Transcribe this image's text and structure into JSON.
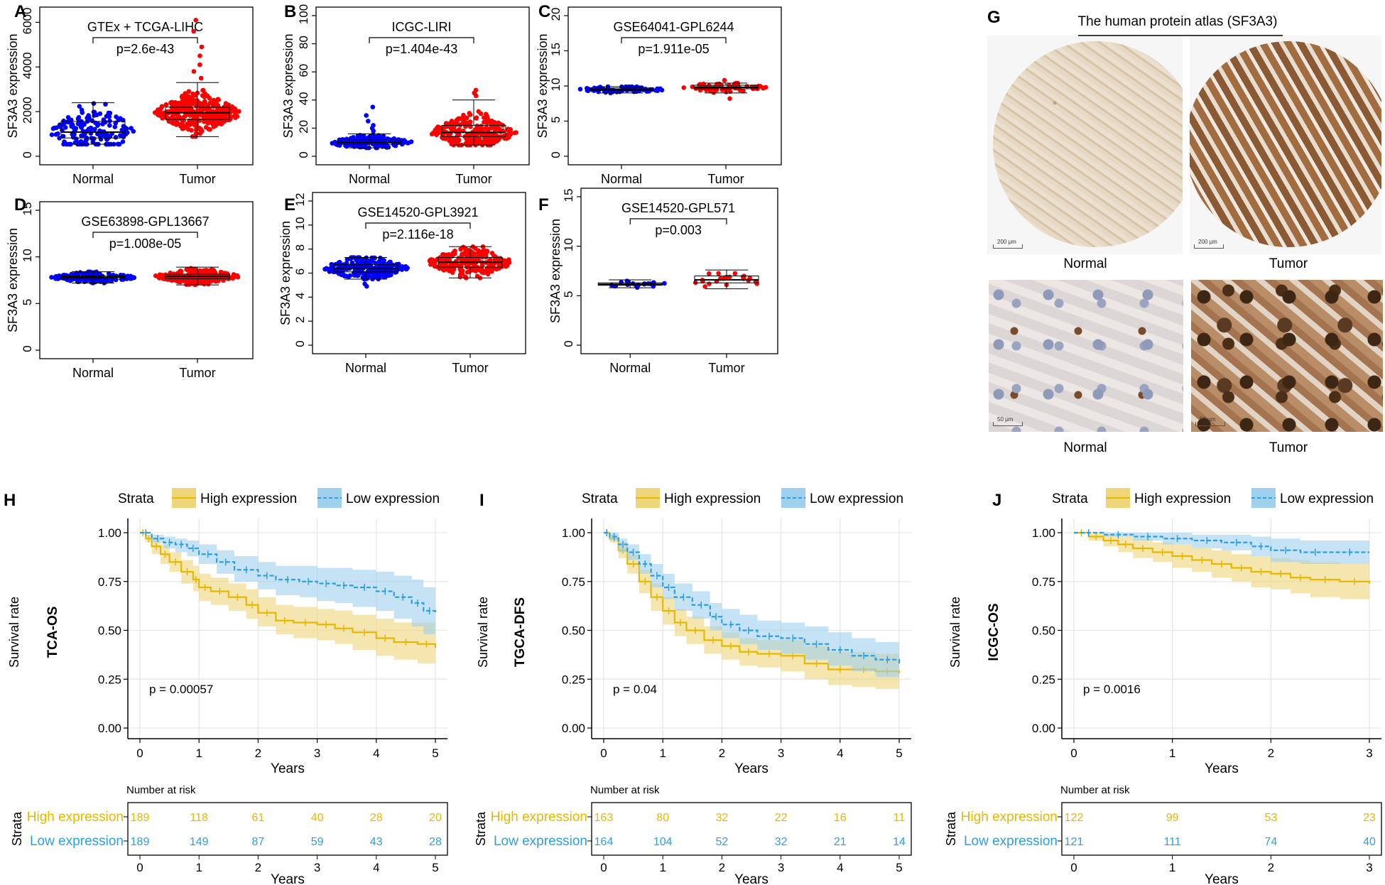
{
  "chart_data": [
    {
      "id": "A",
      "type": "boxplot-beeswarm",
      "panel_label": "A",
      "title": "GTEx + TCGA-LIHC",
      "pvalue": "p=2.6e-43",
      "ylabel": "SF3A3 expression",
      "ylim": [
        0,
        6300
      ],
      "yticks": [
        0,
        2000,
        4000,
        6000
      ],
      "ytick_labels": [
        "0",
        "2000",
        "4000",
        "6000"
      ],
      "categories": [
        "Normal",
        "Tumor"
      ],
      "groups": [
        {
          "name": "Normal",
          "color": "#0000ff",
          "n": 160,
          "median": 1080,
          "q1": 820,
          "q3": 1560,
          "whisker_low": 540,
          "whisker_high": 2400
        },
        {
          "name": "Tumor",
          "color": "#ff0000",
          "n": 370,
          "median": 1950,
          "q1": 1650,
          "q3": 2200,
          "whisker_low": 880,
          "whisker_high": 3300,
          "outliers": [
            3500,
            3800,
            4100,
            4500,
            4900,
            5600,
            6100
          ]
        }
      ]
    },
    {
      "id": "B",
      "type": "boxplot-beeswarm",
      "panel_label": "B",
      "title": "ICGC-LIRI",
      "pvalue": "p=1.404e-43",
      "ylabel": "SF3A3 expression",
      "ylim": [
        0,
        100
      ],
      "yticks": [
        0,
        20,
        40,
        60,
        80,
        100
      ],
      "ytick_labels": [
        "0",
        "20",
        "40",
        "60",
        "80",
        "100"
      ],
      "categories": [
        "Normal",
        "Tumor"
      ],
      "groups": [
        {
          "name": "Normal",
          "color": "#0000ff",
          "n": 200,
          "median": 10,
          "q1": 8.5,
          "q3": 11.5,
          "whisker_low": 6,
          "whisker_high": 16,
          "outliers": [
            18,
            20,
            22,
            25,
            29,
            35
          ]
        },
        {
          "name": "Tumor",
          "color": "#ff0000",
          "n": 240,
          "median": 17,
          "q1": 14,
          "q3": 22,
          "whisker_low": 8,
          "whisker_high": 40,
          "outliers": [
            43,
            45,
            47
          ]
        }
      ]
    },
    {
      "id": "C",
      "type": "boxplot-beeswarm",
      "panel_label": "C",
      "title": "GSE64041-GPL6244",
      "pvalue": "p=1.911e-05",
      "ylabel": "SF3A3 expression",
      "ylim": [
        0,
        20
      ],
      "yticks": [
        0,
        5,
        10,
        15,
        20
      ],
      "ytick_labels": [
        "0",
        "5",
        "10",
        "15",
        "20"
      ],
      "categories": [
        "Normal",
        "Tumor"
      ],
      "groups": [
        {
          "name": "Normal",
          "color": "#0000ff",
          "n": 65,
          "median": 9.5,
          "q1": 9.35,
          "q3": 9.7,
          "whisker_low": 9.0,
          "whisker_high": 9.9
        },
        {
          "name": "Tumor",
          "color": "#ff0000",
          "n": 60,
          "median": 9.8,
          "q1": 9.6,
          "q3": 10.1,
          "whisker_low": 9.0,
          "whisker_high": 10.4,
          "outliers": [
            8.2,
            10.8
          ]
        }
      ]
    },
    {
      "id": "D",
      "type": "boxplot-beeswarm",
      "panel_label": "D",
      "title": "GSE63898-GPL13667",
      "pvalue": "p=1.008e-05",
      "ylabel": "SF3A3 expression",
      "ylim": [
        0,
        15
      ],
      "yticks": [
        0,
        5,
        10,
        15
      ],
      "ytick_labels": [
        "0",
        "5",
        "10",
        "15"
      ],
      "categories": [
        "Normal",
        "Tumor"
      ],
      "groups": [
        {
          "name": "Normal",
          "color": "#0000ff",
          "n": 168,
          "median": 7.8,
          "q1": 7.6,
          "q3": 7.95,
          "whisker_low": 7.2,
          "whisker_high": 8.4
        },
        {
          "name": "Tumor",
          "color": "#ff0000",
          "n": 228,
          "median": 7.9,
          "q1": 7.65,
          "q3": 8.15,
          "whisker_low": 7.0,
          "whisker_high": 8.9
        }
      ]
    },
    {
      "id": "E",
      "type": "boxplot-beeswarm",
      "panel_label": "E",
      "title": "GSE14520-GPL3921",
      "pvalue": "p=2.116e-18",
      "ylabel": "SF3A3 expression",
      "ylim": [
        0,
        12
      ],
      "yticks": [
        0,
        2,
        4,
        6,
        8,
        10,
        12
      ],
      "ytick_labels": [
        "0",
        "2",
        "4",
        "6",
        "8",
        "10",
        "12"
      ],
      "categories": [
        "Normal",
        "Tumor"
      ],
      "groups": [
        {
          "name": "Normal",
          "color": "#0000ff",
          "n": 220,
          "median": 6.4,
          "q1": 6.1,
          "q3": 6.7,
          "whisker_low": 5.5,
          "whisker_high": 7.3,
          "outliers": [
            4.9,
            5.1
          ]
        },
        {
          "name": "Tumor",
          "color": "#ff0000",
          "n": 225,
          "median": 6.9,
          "q1": 6.5,
          "q3": 7.3,
          "whisker_low": 5.6,
          "whisker_high": 8.2
        }
      ]
    },
    {
      "id": "F",
      "type": "boxplot-beeswarm",
      "panel_label": "F",
      "title": "GSE14520-GPL571",
      "pvalue": "p=0.003",
      "ylabel": "SF3A3 expression",
      "ylim": [
        0,
        15
      ],
      "yticks": [
        0,
        5,
        10,
        15
      ],
      "ytick_labels": [
        "0",
        "5",
        "10",
        "15"
      ],
      "categories": [
        "Normal",
        "Tumor"
      ],
      "groups": [
        {
          "name": "Normal",
          "color": "#0000ff",
          "n": 19,
          "median": 6.15,
          "q1": 6.05,
          "q3": 6.3,
          "whisker_low": 5.8,
          "whisker_high": 6.6
        },
        {
          "name": "Tumor",
          "color": "#ff0000",
          "n": 22,
          "median": 6.6,
          "q1": 6.3,
          "q3": 7.0,
          "whisker_low": 5.7,
          "whisker_high": 7.6
        }
      ]
    },
    {
      "id": "H",
      "type": "survival",
      "panel_label": "H",
      "side_label": "TCA-OS",
      "ylabel": "Survival rate",
      "xlabel": "Years",
      "pvalue": "p = 0.00057",
      "xlim": [
        0,
        5
      ],
      "ylim": [
        0,
        1
      ],
      "xticks": [
        0,
        1,
        2,
        3,
        4,
        5
      ],
      "yticks": [
        0,
        0.25,
        0.5,
        0.75,
        1
      ],
      "ytick_labels": [
        "0.00",
        "0.25",
        "0.50",
        "0.75",
        "1.00"
      ],
      "series": [
        {
          "name": "High expression",
          "color": "#e7b800",
          "fill": "#efd67a",
          "x": [
            0,
            0.1,
            0.2,
            0.35,
            0.5,
            0.7,
            0.9,
            1.0,
            1.2,
            1.5,
            1.8,
            2.0,
            2.3,
            2.6,
            3.0,
            3.3,
            3.6,
            4.0,
            4.3,
            4.7,
            5.0
          ],
          "y": [
            1.0,
            0.97,
            0.93,
            0.89,
            0.85,
            0.8,
            0.76,
            0.72,
            0.7,
            0.67,
            0.63,
            0.59,
            0.55,
            0.54,
            0.53,
            0.51,
            0.49,
            0.46,
            0.44,
            0.43,
            0.41
          ],
          "lower": [
            1.0,
            0.95,
            0.89,
            0.84,
            0.8,
            0.74,
            0.7,
            0.65,
            0.63,
            0.6,
            0.56,
            0.52,
            0.48,
            0.46,
            0.45,
            0.43,
            0.4,
            0.37,
            0.35,
            0.33,
            0.31
          ],
          "upper": [
            1.0,
            0.99,
            0.97,
            0.94,
            0.9,
            0.86,
            0.83,
            0.79,
            0.77,
            0.74,
            0.71,
            0.67,
            0.63,
            0.62,
            0.61,
            0.6,
            0.58,
            0.56,
            0.54,
            0.54,
            0.53
          ]
        },
        {
          "name": "Low expression",
          "color": "#2e9fdf",
          "fill": "#9fd0ee",
          "dashed": true,
          "x": [
            0,
            0.2,
            0.4,
            0.6,
            0.8,
            1.0,
            1.3,
            1.6,
            2.0,
            2.3,
            2.7,
            3.0,
            3.3,
            3.6,
            4.0,
            4.3,
            4.6,
            4.8,
            5.0
          ],
          "y": [
            1.0,
            0.97,
            0.95,
            0.94,
            0.92,
            0.89,
            0.85,
            0.81,
            0.78,
            0.76,
            0.75,
            0.74,
            0.73,
            0.72,
            0.7,
            0.67,
            0.64,
            0.6,
            0.59
          ],
          "lower": [
            1.0,
            0.95,
            0.92,
            0.9,
            0.88,
            0.84,
            0.79,
            0.75,
            0.71,
            0.68,
            0.67,
            0.65,
            0.64,
            0.62,
            0.6,
            0.56,
            0.52,
            0.48,
            0.47
          ],
          "upper": [
            1.0,
            0.99,
            0.98,
            0.97,
            0.96,
            0.94,
            0.91,
            0.88,
            0.85,
            0.83,
            0.83,
            0.82,
            0.82,
            0.81,
            0.8,
            0.78,
            0.76,
            0.72,
            0.71
          ]
        }
      ],
      "legend": {
        "title": "Strata",
        "entries": [
          "High expression",
          "Low expression"
        ]
      },
      "risk_table": {
        "title": "Number at risk",
        "strata_label": "Strata",
        "xlabel": "Years",
        "rows": [
          {
            "name": "High expression",
            "color": "#e7b800",
            "values": [
              189,
              118,
              61,
              40,
              28,
              20
            ]
          },
          {
            "name": "Low expression",
            "color": "#2e9fdf",
            "values": [
              189,
              149,
              87,
              59,
              43,
              28
            ]
          }
        ]
      }
    },
    {
      "id": "I",
      "type": "survival",
      "panel_label": "I",
      "side_label": "TGCA-DFS",
      "ylabel": "Survival rate",
      "xlabel": "Years",
      "pvalue": "p = 0.04",
      "xlim": [
        0,
        5
      ],
      "ylim": [
        0,
        1
      ],
      "xticks": [
        0,
        1,
        2,
        3,
        4,
        5
      ],
      "yticks": [
        0,
        0.25,
        0.5,
        0.75,
        1
      ],
      "ytick_labels": [
        "0.00",
        "0.25",
        "0.50",
        "0.75",
        "1.00"
      ],
      "series": [
        {
          "name": "High expression",
          "color": "#e7b800",
          "fill": "#efd67a",
          "x": [
            0,
            0.1,
            0.25,
            0.4,
            0.6,
            0.8,
            1.0,
            1.2,
            1.4,
            1.7,
            2.0,
            2.3,
            2.6,
            3.0,
            3.4,
            3.8,
            4.2,
            4.6,
            5.0
          ],
          "y": [
            1.0,
            0.97,
            0.91,
            0.84,
            0.75,
            0.67,
            0.6,
            0.54,
            0.5,
            0.45,
            0.42,
            0.39,
            0.38,
            0.37,
            0.33,
            0.3,
            0.3,
            0.29,
            0.28
          ],
          "lower": [
            1.0,
            0.95,
            0.87,
            0.79,
            0.69,
            0.6,
            0.53,
            0.47,
            0.43,
            0.38,
            0.35,
            0.32,
            0.31,
            0.29,
            0.25,
            0.22,
            0.21,
            0.2,
            0.19
          ],
          "upper": [
            1.0,
            0.99,
            0.95,
            0.89,
            0.81,
            0.74,
            0.67,
            0.61,
            0.57,
            0.52,
            0.49,
            0.46,
            0.45,
            0.45,
            0.42,
            0.39,
            0.39,
            0.38,
            0.38
          ]
        },
        {
          "name": "Low expression",
          "color": "#2e9fdf",
          "fill": "#9fd0ee",
          "dashed": true,
          "x": [
            0,
            0.1,
            0.25,
            0.4,
            0.6,
            0.8,
            1.0,
            1.2,
            1.5,
            1.8,
            2.0,
            2.3,
            2.6,
            3.0,
            3.4,
            3.8,
            4.2,
            4.6,
            5.0
          ],
          "y": [
            1.0,
            0.98,
            0.94,
            0.9,
            0.84,
            0.78,
            0.72,
            0.67,
            0.63,
            0.57,
            0.53,
            0.5,
            0.47,
            0.46,
            0.43,
            0.4,
            0.37,
            0.35,
            0.33
          ],
          "lower": [
            1.0,
            0.96,
            0.9,
            0.86,
            0.79,
            0.72,
            0.66,
            0.6,
            0.56,
            0.5,
            0.46,
            0.43,
            0.4,
            0.38,
            0.35,
            0.32,
            0.29,
            0.26,
            0.24
          ],
          "upper": [
            1.0,
            1.0,
            0.97,
            0.94,
            0.89,
            0.84,
            0.79,
            0.74,
            0.7,
            0.64,
            0.61,
            0.58,
            0.55,
            0.54,
            0.52,
            0.49,
            0.46,
            0.44,
            0.43
          ]
        }
      ],
      "legend": {
        "title": "Strata",
        "entries": [
          "High expression",
          "Low expression"
        ]
      },
      "risk_table": {
        "title": "Number at risk",
        "strata_label": "Strata",
        "xlabel": "Years",
        "rows": [
          {
            "name": "High expression",
            "color": "#e7b800",
            "values": [
              163,
              80,
              32,
              22,
              16,
              11
            ]
          },
          {
            "name": "Low expression",
            "color": "#2e9fdf",
            "values": [
              164,
              104,
              52,
              32,
              21,
              14
            ]
          }
        ]
      }
    },
    {
      "id": "J",
      "type": "survival",
      "panel_label": "J",
      "side_label": "ICGC-OS",
      "ylabel": "Survival rate",
      "xlabel": "Years",
      "pvalue": "p = 0.0016",
      "xlim": [
        0,
        3
      ],
      "ylim": [
        0,
        1
      ],
      "xticks": [
        0,
        1,
        2,
        3
      ],
      "yticks": [
        0,
        0.25,
        0.5,
        0.75,
        1
      ],
      "ytick_labels": [
        "0.00",
        "0.25",
        "0.50",
        "0.75",
        "1.00"
      ],
      "series": [
        {
          "name": "High expression",
          "color": "#e7b800",
          "fill": "#efd67a",
          "x": [
            0,
            0.15,
            0.3,
            0.45,
            0.6,
            0.8,
            1.0,
            1.2,
            1.4,
            1.6,
            1.8,
            2.0,
            2.2,
            2.4,
            2.7,
            3.0
          ],
          "y": [
            1.0,
            0.98,
            0.96,
            0.94,
            0.92,
            0.9,
            0.88,
            0.86,
            0.84,
            0.82,
            0.8,
            0.79,
            0.77,
            0.76,
            0.75,
            0.74
          ],
          "lower": [
            1.0,
            0.96,
            0.93,
            0.9,
            0.87,
            0.85,
            0.82,
            0.8,
            0.77,
            0.75,
            0.72,
            0.71,
            0.69,
            0.67,
            0.66,
            0.65
          ],
          "upper": [
            1.0,
            1.0,
            0.99,
            0.98,
            0.97,
            0.95,
            0.94,
            0.92,
            0.91,
            0.89,
            0.88,
            0.87,
            0.86,
            0.85,
            0.84,
            0.84
          ]
        },
        {
          "name": "Low expression",
          "color": "#2e9fdf",
          "fill": "#9fd0ee",
          "dashed": true,
          "x": [
            0,
            0.3,
            0.6,
            0.9,
            1.2,
            1.5,
            1.8,
            2.0,
            2.3,
            2.6,
            3.0
          ],
          "y": [
            1.0,
            0.99,
            0.98,
            0.97,
            0.96,
            0.95,
            0.93,
            0.91,
            0.9,
            0.9,
            0.9
          ],
          "lower": [
            1.0,
            0.98,
            0.96,
            0.94,
            0.92,
            0.91,
            0.88,
            0.85,
            0.84,
            0.84,
            0.84
          ],
          "upper": [
            1.0,
            1.0,
            1.0,
            1.0,
            0.99,
            0.99,
            0.98,
            0.97,
            0.96,
            0.96,
            0.96
          ]
        }
      ],
      "legend": {
        "title": "Strata",
        "entries": [
          "High expression",
          "Low expression"
        ]
      },
      "risk_table": {
        "title": "Number at risk",
        "strata_label": "Strata",
        "xlabel": "Years",
        "rows": [
          {
            "name": "High expression",
            "color": "#e7b800",
            "values": [
              122,
              99,
              53,
              23
            ]
          },
          {
            "name": "Low expression",
            "color": "#2e9fdf",
            "values": [
              121,
              111,
              74,
              40
            ]
          }
        ]
      }
    }
  ],
  "hpa": {
    "panel_label": "G",
    "title": "The human protein atlas (SF3A3)",
    "top_labels": [
      "Normal",
      "Tumor"
    ],
    "bottom_labels": [
      "Normal",
      "Tumor"
    ],
    "scale_top": "200 μm",
    "scale_bottom": "50 μm"
  }
}
